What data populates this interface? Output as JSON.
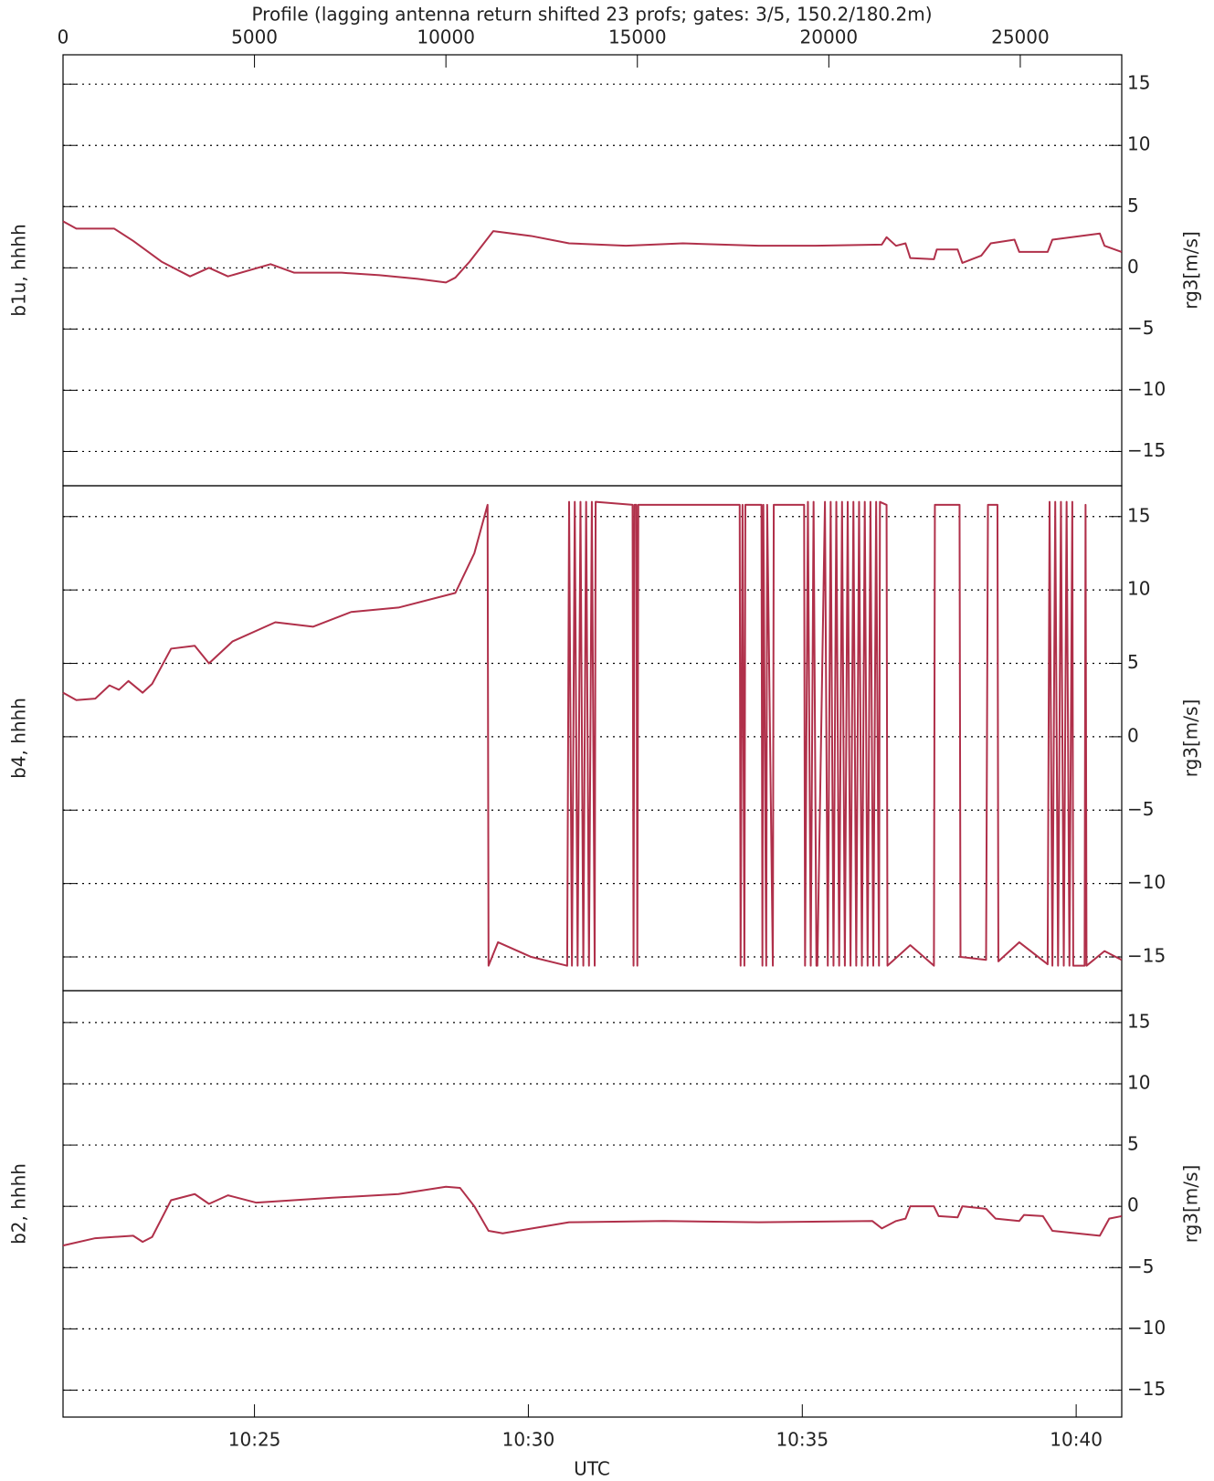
{
  "chart_data": [
    {
      "type": "line",
      "title": "Profile (lagging antenna return shifted 23 profs; gates: 3/5, 150.2/180.2m)",
      "y_label": "b1u, hhhh",
      "y2_label": "rg3[m/s]",
      "color": "#b0304a",
      "grid": true,
      "xlim": [
        0,
        27650
      ],
      "xticks": [
        0,
        5000,
        10000,
        15000,
        20000,
        25000
      ],
      "ylim": [
        -17.8,
        17.4
      ],
      "yticks": [
        {
          "value": -15,
          "label": "−15"
        },
        {
          "value": -10,
          "label": "−10"
        },
        {
          "value": -5,
          "label": "−5"
        },
        0,
        5,
        10,
        15
      ],
      "x": [
        0,
        347,
        1337,
        1832,
        2574,
        3317,
        3812,
        4307,
        5420,
        6039,
        7277,
        8267,
        9257,
        9999,
        10247,
        10618,
        11237,
        12227,
        13217,
        14702,
        16187,
        18167,
        19652,
        21384,
        21508,
        21755,
        22003,
        22127,
        22745,
        22820,
        23364,
        23488,
        23983,
        24230,
        24849,
        24973,
        25715,
        25839,
        27077,
        27200,
        27646
      ],
      "values": [
        3.8,
        3.2,
        3.2,
        2.2,
        0.5,
        -0.7,
        0,
        -0.7,
        0.3,
        -0.4,
        -0.4,
        -0.6,
        -0.9,
        -1.2,
        -0.8,
        0.5,
        3.0,
        2.6,
        2.0,
        1.8,
        2.0,
        1.8,
        1.8,
        1.9,
        2.5,
        1.8,
        2.0,
        0.8,
        0.7,
        1.5,
        1.5,
        0.4,
        1.0,
        2.0,
        2.3,
        1.3,
        1.3,
        2.3,
        2.8,
        1.8,
        1.3
      ]
    },
    {
      "type": "line",
      "y_label": "b4, hhhh",
      "y2_label": "rg3[m/s]",
      "color": "#b0304a",
      "grid": true,
      "xlim": [
        0,
        27650
      ],
      "ylim": [
        -17.3,
        17.1
      ],
      "yticks": [
        {
          "value": -15,
          "label": "−15"
        },
        {
          "value": -10,
          "label": "−10"
        },
        {
          "value": -5,
          "label": "−5"
        },
        0,
        5,
        10,
        15
      ],
      "x": [
        0,
        347,
        842,
        1213,
        1460,
        1708,
        2079,
        2327,
        2822,
        3440,
        3812,
        4430,
        5544,
        6534,
        7524,
        8762,
        10247,
        10742,
        11088,
        11113,
        11360,
        12227,
        13167,
        13217,
        13291,
        13365,
        13439,
        13514,
        13588,
        13662,
        13736,
        13811,
        13885,
        13910,
        14875,
        14900,
        14925,
        14974,
        14999,
        15024,
        17672,
        17696,
        17746,
        17795,
        17820,
        18241,
        18266,
        18290,
        18365,
        18390,
        18538,
        18562,
        19355,
        19379,
        19454,
        19528,
        19602,
        19676,
        19701,
        19899,
        19973,
        20048,
        20122,
        20196,
        20270,
        20345,
        20419,
        20493,
        20567,
        20642,
        20716,
        20790,
        20864,
        20939,
        21013,
        21087,
        21161,
        21236,
        21310,
        21335,
        21508,
        21532,
        22127,
        22745,
        22770,
        23414,
        23439,
        24107,
        24156,
        24404,
        24428,
        24973,
        25715,
        25765,
        25839,
        25913,
        25987,
        26062,
        26136,
        26210,
        26284,
        26359,
        26383,
        26680,
        26705,
        26730,
        27200,
        27646
      ],
      "values": [
        3.0,
        2.5,
        2.6,
        3.5,
        3.2,
        3.8,
        3.0,
        3.6,
        6.0,
        6.2,
        5.0,
        6.5,
        7.8,
        7.5,
        8.5,
        8.8,
        9.8,
        12.5,
        15.8,
        -15.6,
        -14.0,
        -15.0,
        -15.6,
        16,
        -15.6,
        16,
        -15.6,
        16,
        -15.6,
        16,
        -15.6,
        16,
        -15.6,
        16,
        15.8,
        -15.6,
        15.8,
        15.8,
        -15.6,
        15.8,
        15.8,
        -15.6,
        15.8,
        -15.6,
        15.8,
        15.8,
        -15.6,
        15.8,
        -15.6,
        15.8,
        -15.6,
        15.8,
        15.8,
        -15.6,
        16,
        -15.6,
        16,
        -15.6,
        -15.6,
        16,
        -15.6,
        16,
        -15.6,
        16,
        -15.6,
        16,
        -15.6,
        16,
        -15.6,
        16,
        -15.6,
        16,
        -15.6,
        16,
        -15.6,
        16,
        -15.6,
        16,
        -15.6,
        16,
        15.8,
        -15.6,
        -14.2,
        -15.6,
        15.8,
        15.8,
        -15.0,
        -15.2,
        15.8,
        15.8,
        -15.3,
        -14.0,
        -15.5,
        16,
        -15.6,
        16,
        -15.6,
        16,
        -15.6,
        16,
        -15.6,
        16,
        -15.6,
        -15.6,
        15.8,
        -15.6,
        -14.6,
        -15.2
      ]
    },
    {
      "type": "line",
      "y_label": "b2, hhhh",
      "y2_label": "rg3[m/s]",
      "xlabel": "UTC",
      "color": "#b0304a",
      "grid": true,
      "xlim": [
        0,
        27650
      ],
      "xticks": [
        {
          "value": 5000,
          "label": "10:25"
        },
        {
          "value": 12153,
          "label": "10:30"
        },
        {
          "value": 19307,
          "label": "10:35"
        },
        {
          "value": 26460,
          "label": "10:40"
        }
      ],
      "ylim": [
        -17.2,
        17.6
      ],
      "yticks": [
        {
          "value": -15,
          "label": "−15"
        },
        {
          "value": -10,
          "label": "−10"
        },
        {
          "value": -5,
          "label": "−5"
        },
        0,
        5,
        10,
        15
      ],
      "x": [
        0,
        842,
        1832,
        2079,
        2327,
        2822,
        3440,
        3812,
        4307,
        5049,
        7029,
        8762,
        9999,
        10370,
        10742,
        11113,
        11484,
        13217,
        15692,
        18167,
        21137,
        21384,
        21755,
        22003,
        22127,
        22745,
        22869,
        23364,
        23488,
        24107,
        24354,
        24973,
        25097,
        25592,
        25839,
        27077,
        27324,
        27646
      ],
      "values": [
        -3.2,
        -2.6,
        -2.4,
        -2.9,
        -2.5,
        0.5,
        1.0,
        0.2,
        0.9,
        0.3,
        0.7,
        1.0,
        1.6,
        1.5,
        0,
        -2.0,
        -2.2,
        -1.3,
        -1.2,
        -1.3,
        -1.2,
        -1.8,
        -1.2,
        -1.0,
        0,
        0,
        -0.8,
        -0.9,
        0,
        -0.2,
        -1.0,
        -1.2,
        -0.7,
        -0.8,
        -2.0,
        -2.4,
        -1.0,
        -0.8
      ]
    }
  ]
}
